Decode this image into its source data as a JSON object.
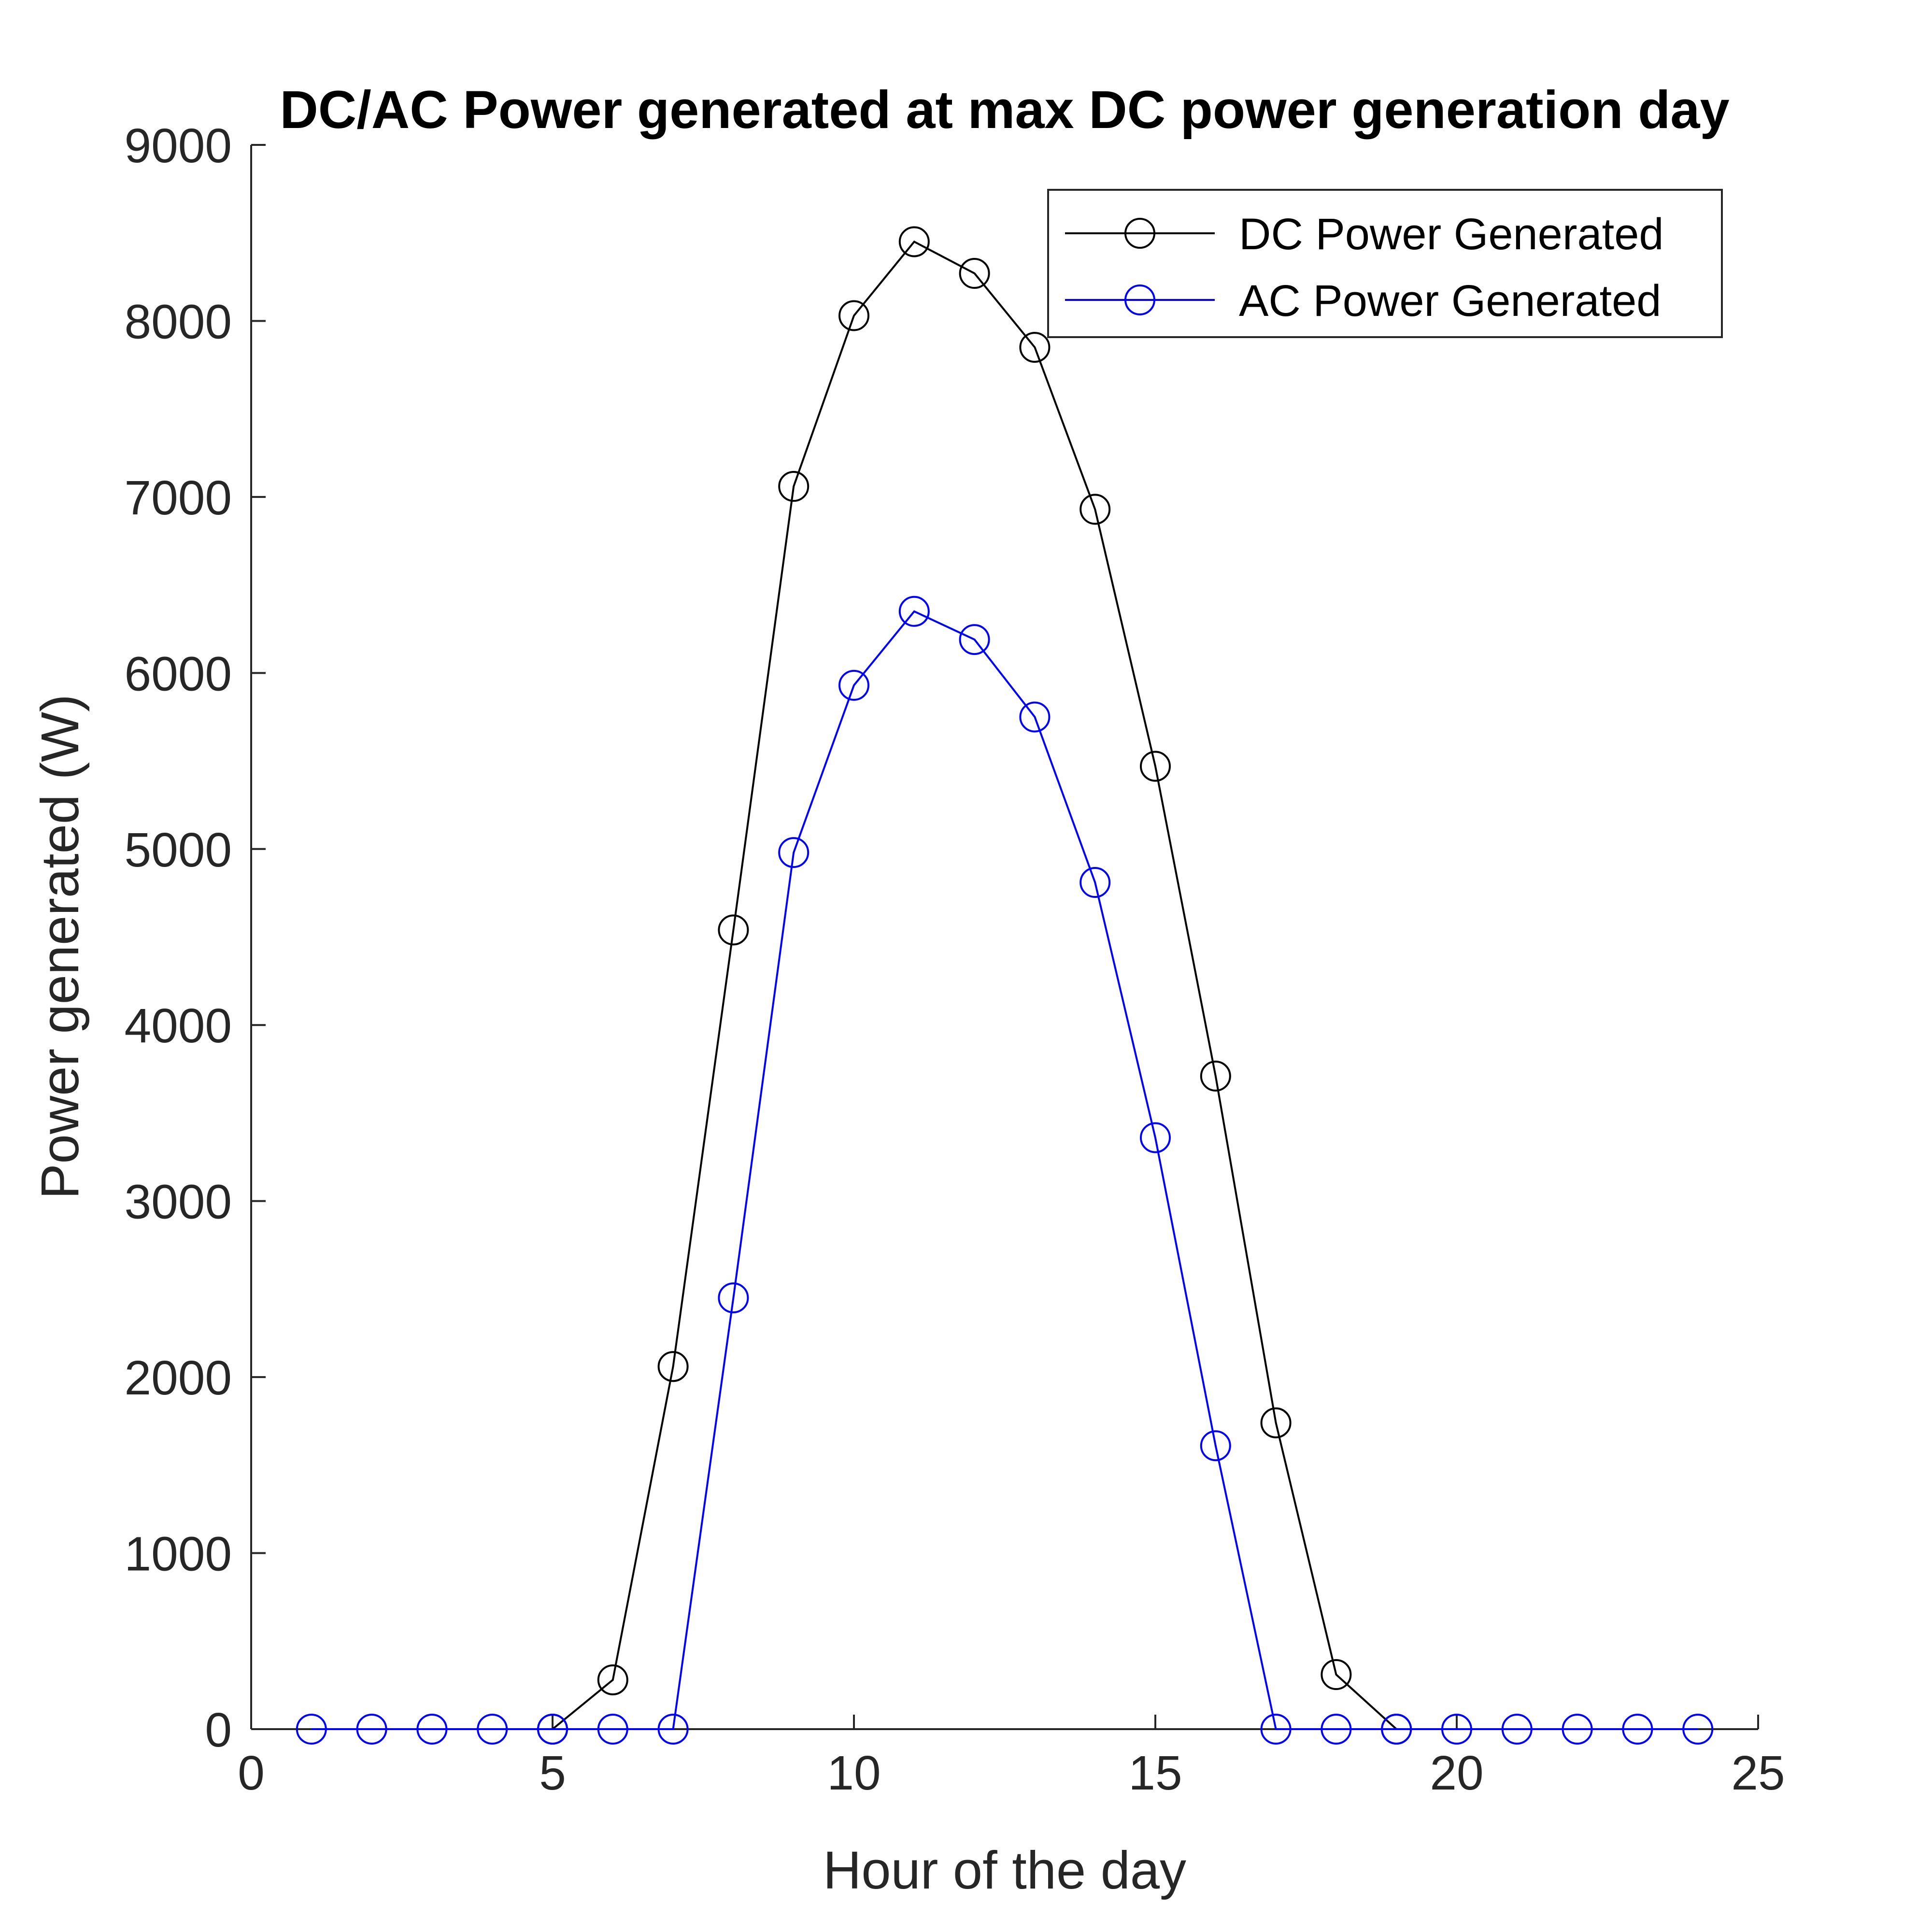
{
  "chart_data": {
    "type": "line",
    "title": "DC/AC Power generated at max DC power generation day",
    "xlabel": "Hour of the day",
    "ylabel": "Power generated (W)",
    "xlim": [
      0,
      25
    ],
    "ylim": [
      0,
      9000
    ],
    "xticks": [
      "0",
      "5",
      "10",
      "15",
      "20",
      "25"
    ],
    "yticks": [
      "0",
      "1000",
      "2000",
      "3000",
      "4000",
      "5000",
      "6000",
      "7000",
      "8000",
      "9000"
    ],
    "grid": false,
    "legend_position": "top-right",
    "series": [
      {
        "name": "DC Power Generated",
        "color": "#000000",
        "marker": "circle",
        "x": [
          5,
          6,
          7,
          8,
          9,
          10,
          11,
          12,
          13,
          14,
          15,
          16,
          17,
          18,
          19
        ],
        "y": [
          0,
          280,
          2060,
          4540,
          7060,
          8030,
          8450,
          8270,
          7850,
          6930,
          5470,
          3710,
          1740,
          310,
          0
        ]
      },
      {
        "name": "AC Power Generated",
        "color": "#0000ff",
        "marker": "circle",
        "x": [
          1,
          2,
          3,
          4,
          5,
          6,
          7,
          8,
          9,
          10,
          11,
          12,
          13,
          14,
          15,
          16,
          17,
          18,
          19,
          20,
          21,
          22,
          23,
          24
        ],
        "y": [
          0,
          0,
          0,
          0,
          0,
          0,
          0,
          2450,
          4980,
          5930,
          6350,
          6190,
          5750,
          4810,
          3360,
          1610,
          0,
          0,
          0,
          0,
          0,
          0,
          0,
          0
        ]
      }
    ]
  }
}
